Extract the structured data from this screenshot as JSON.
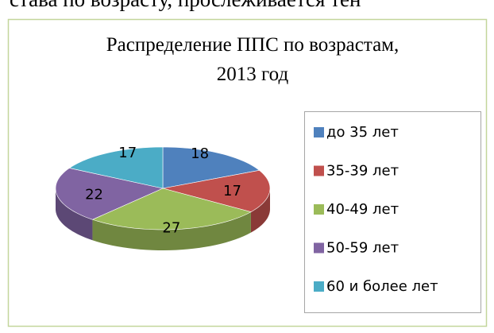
{
  "header_text": "става по возрасту, прослеживается тен",
  "chart_data": {
    "type": "pie3d",
    "title": "Распределение ППС по возрастам,\n2013 год",
    "categories": [
      "до 35 лет",
      "35-39 лет",
      "40-49 лет",
      "50-59 лет",
      "60 и более лет"
    ],
    "values": [
      18,
      17,
      27,
      22,
      17
    ],
    "colors": [
      "#4f81bd",
      "#c0504d",
      "#9bbb59",
      "#8064a2",
      "#4bacc6"
    ],
    "legend": "right"
  }
}
